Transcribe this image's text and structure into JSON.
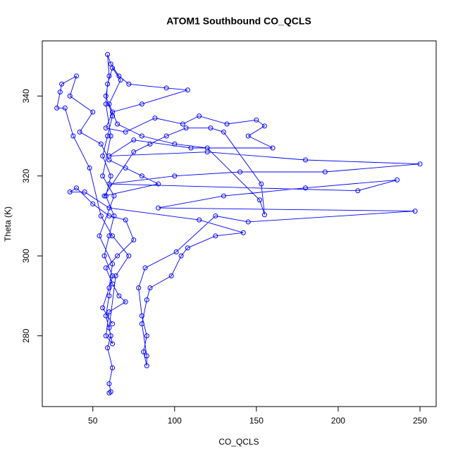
{
  "chart_data": {
    "type": "line",
    "markers": true,
    "color": "#0000ff",
    "title": "ATOM1 Southbound CO_QCLS",
    "xlabel": "CO_QCLS",
    "ylabel": "Theta (K)",
    "xlim": [
      19.1,
      259.9
    ],
    "ylim": [
      262.3,
      353.8
    ],
    "xticks": [
      50,
      100,
      150,
      200,
      250
    ],
    "yticks": [
      280,
      300,
      320,
      340
    ],
    "grid": false,
    "x": [
      60,
      61,
      60,
      62,
      59,
      61,
      58,
      60,
      62,
      57,
      60,
      63,
      58,
      61,
      56,
      59,
      62,
      58,
      60,
      59,
      61,
      66,
      72,
      95,
      108,
      80,
      62,
      58,
      70,
      88,
      105,
      115,
      132,
      150,
      155,
      145,
      160,
      110,
      75,
      60,
      120,
      180,
      250,
      192,
      140,
      100,
      60,
      212,
      236,
      180,
      130,
      90,
      247,
      145,
      125,
      101,
      82,
      78,
      80,
      83,
      81,
      83,
      83,
      80,
      83,
      85,
      98,
      104,
      108,
      125,
      142,
      115,
      60,
      45,
      36,
      40,
      50,
      60,
      70,
      75,
      65,
      58,
      62,
      66,
      70,
      60,
      58,
      62,
      60,
      64,
      72,
      62,
      55,
      48,
      38,
      33,
      28,
      30,
      31,
      40,
      36,
      50,
      42,
      55,
      60,
      70,
      80,
      90,
      57,
      75,
      85,
      95,
      107,
      122,
      130,
      153,
      155,
      152,
      120,
      100,
      80,
      65,
      60,
      67,
      62,
      59,
      58,
      61,
      56,
      63,
      54,
      62,
      60,
      56,
      62
    ],
    "values": [
      265.7,
      266,
      268,
      272,
      277,
      280,
      285,
      290,
      295,
      300,
      305,
      310,
      315,
      320,
      325,
      330,
      335,
      340,
      345,
      350.4,
      348,
      345,
      343,
      342,
      341.5,
      338,
      336,
      332,
      331,
      334.5,
      333,
      335,
      333,
      334,
      332.5,
      330,
      327,
      327,
      329,
      325,
      326,
      324,
      323,
      321,
      321,
      320,
      318,
      316.3,
      319,
      317,
      315,
      312,
      311.2,
      308.5,
      310,
      301,
      297,
      292,
      285,
      280,
      276,
      272.5,
      275,
      283,
      289,
      292,
      295,
      300,
      302,
      305,
      305.8,
      309,
      312,
      316,
      316,
      317,
      313,
      310,
      309,
      304,
      300,
      297,
      293,
      290,
      288.5,
      286,
      280,
      278,
      282,
      295,
      300,
      305,
      310,
      322,
      330,
      337,
      337,
      341,
      343,
      345,
      340,
      336,
      331,
      328,
      324,
      322,
      320,
      318,
      315,
      326,
      328,
      330,
      332,
      332,
      331,
      318,
      310.3,
      314,
      327,
      328,
      330,
      333,
      338,
      344,
      347,
      343,
      338,
      330,
      320,
      315,
      305,
      298,
      292,
      287,
      283
    ]
  }
}
